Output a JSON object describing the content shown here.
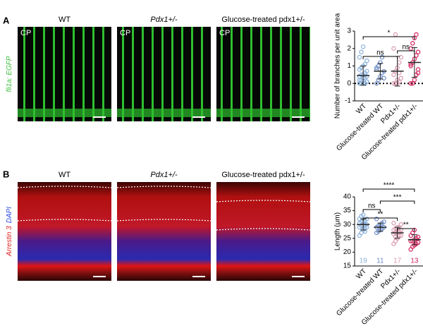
{
  "panel_a": {
    "letter": "A",
    "side_label": [
      {
        "text": "fli1a: EGFP",
        "color": "#3fbf3f"
      }
    ],
    "images": [
      {
        "title": "WT",
        "corner": "CP"
      },
      {
        "title": "Pdx1+/-",
        "corner": "CP"
      },
      {
        "title": "Glucose-treated pdx1+/-",
        "corner": "CP"
      }
    ],
    "chart": {
      "type": "dot-scatter",
      "ylabel": "Number of branches per unit area",
      "ylim": [
        -1,
        3
      ],
      "yticks": [
        -1,
        0,
        1,
        2,
        3
      ],
      "reference_line": 0,
      "categories": [
        "WT",
        "Glucose-treated WT",
        "Pdx1+/-",
        "Glucose-treated pdx1+/-"
      ],
      "significance": [
        "*",
        "ns",
        "ns"
      ],
      "series": [
        {
          "name": "WT",
          "color": "#8ab0dc",
          "values": [
            0,
            0,
            0,
            0,
            0.1,
            0.2,
            0.2,
            0.3,
            0.3,
            0.4,
            0.4,
            0.5,
            0.5,
            0.6,
            0.7,
            0.8,
            0.9,
            1.0,
            1.1,
            1.3,
            1.5,
            1.8,
            2.1,
            0,
            0.1
          ],
          "mean": 0.45,
          "sd": 0.55
        },
        {
          "name": "Glucose-treated WT",
          "color": "#6f8fc9",
          "values": [
            0,
            0.2,
            0.4,
            0.6,
            0.7,
            0.8,
            1.0,
            1.2,
            1.5,
            0.3,
            0.9
          ],
          "mean": 0.7,
          "sd": 0.45
        },
        {
          "name": "Pdx1+/-",
          "color": "#d99aae",
          "values": [
            0,
            0,
            0,
            0.1,
            0.3,
            0.5,
            0.7,
            0.9,
            1.2,
            1.5,
            2.0,
            2.8,
            0.2,
            0.6
          ],
          "mean": 0.7,
          "sd": 0.85
        },
        {
          "name": "Glucose-treated pdx1+/-",
          "color": "#d1245c",
          "values": [
            0,
            0,
            0.2,
            0.5,
            0.8,
            1.0,
            1.2,
            1.4,
            1.6,
            1.8,
            2.0,
            2.3,
            2.6,
            2.8,
            0.6,
            1.1
          ],
          "mean": 1.2,
          "sd": 0.85
        }
      ]
    }
  },
  "panel_b": {
    "letter": "B",
    "side_label": [
      {
        "text": "Arrestin 3",
        "color": "#e02020"
      },
      {
        "text": "DAPI",
        "color": "#3050e0"
      }
    ],
    "images": [
      {
        "title": "WT"
      },
      {
        "title": "Pdx1+/-"
      },
      {
        "title": "Glucose-treated pdx1+/-"
      }
    ],
    "chart": {
      "type": "dot-scatter",
      "ylabel": "Length (μm)",
      "ylim": [
        15,
        40
      ],
      "yticks": [
        15,
        20,
        25,
        30,
        35,
        40
      ],
      "categories": [
        "WT",
        "Glucose-treated WT",
        "Pdx1+/-",
        "Glucose-treated pdx1+/-"
      ],
      "significance": [
        "****",
        "***",
        "ns",
        "**",
        "**"
      ],
      "series": [
        {
          "name": "WT",
          "color": "#8ab0dc",
          "n": "19",
          "values": [
            26,
            27,
            28,
            28.5,
            29,
            29,
            29.5,
            30,
            30,
            30,
            30.5,
            31,
            31,
            31.5,
            32,
            32,
            33,
            33.5,
            27.5
          ],
          "mean": 30,
          "sd": 2
        },
        {
          "name": "Glucose-treated WT",
          "color": "#6f8fc9",
          "n": "11",
          "values": [
            27,
            27.5,
            28,
            28.5,
            29,
            29,
            29.5,
            30,
            30.5,
            31,
            32
          ],
          "mean": 29,
          "sd": 1.5
        },
        {
          "name": "Pdx1+/-",
          "color": "#d99aae",
          "n": "17",
          "values": [
            23,
            24,
            25,
            26,
            26,
            26.5,
            27,
            27,
            27.5,
            28,
            28,
            28.5,
            29,
            29,
            30,
            30.5,
            25.5
          ],
          "mean": 27,
          "sd": 2
        },
        {
          "name": "Glucose-treated pdx1+/-",
          "color": "#d1245c",
          "n": "13",
          "values": [
            21,
            22,
            22.5,
            23,
            23.5,
            24,
            24,
            24.5,
            25,
            25.5,
            26,
            27,
            28
          ],
          "mean": 24.5,
          "sd": 1.8
        }
      ]
    }
  }
}
